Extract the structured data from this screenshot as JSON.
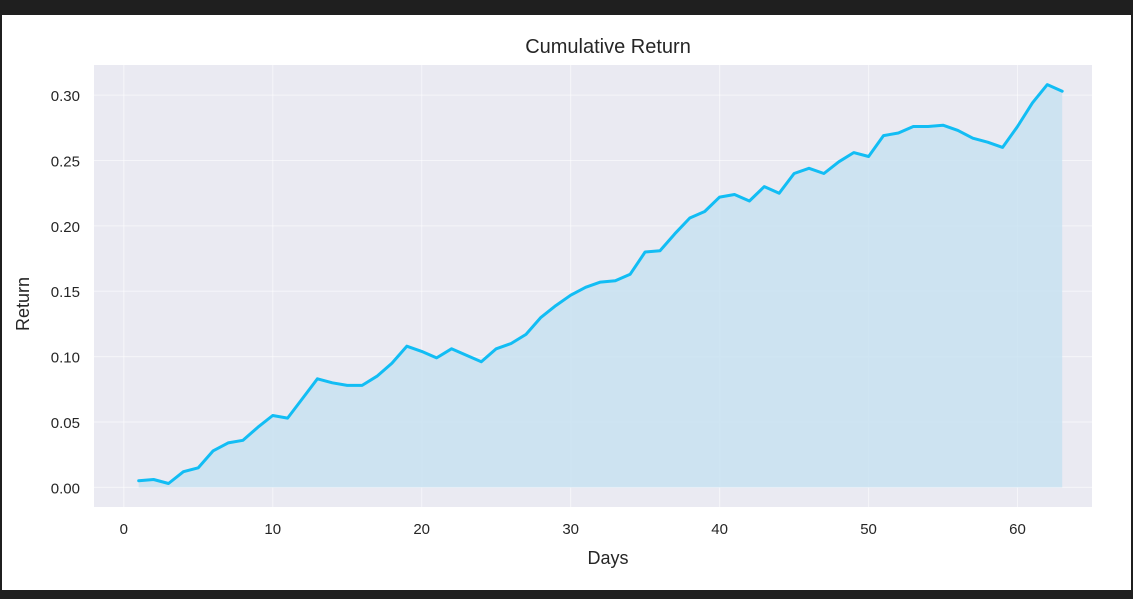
{
  "chart_data": {
    "type": "area",
    "title": "Cumulative Return",
    "xlabel": "Days",
    "ylabel": "Return",
    "xlim": [
      -2,
      65
    ],
    "ylim": [
      -0.015,
      0.323
    ],
    "xticks": [
      0,
      10,
      20,
      30,
      40,
      50,
      60
    ],
    "yticks": [
      0.0,
      0.05,
      0.1,
      0.15,
      0.2,
      0.25,
      0.3
    ],
    "grid": true,
    "line_color": "#12bdf4",
    "fill_color": "#c8e2f1",
    "background_color": "#eaeaf2",
    "x": [
      1,
      2,
      3,
      4,
      5,
      6,
      7,
      8,
      9,
      10,
      11,
      12,
      13,
      14,
      15,
      16,
      17,
      18,
      19,
      20,
      21,
      22,
      23,
      24,
      25,
      26,
      27,
      28,
      29,
      30,
      31,
      32,
      33,
      34,
      35,
      36,
      37,
      38,
      39,
      40,
      41,
      42,
      43,
      44,
      45,
      46,
      47,
      48,
      49,
      50,
      51,
      52,
      53,
      54,
      55,
      56,
      57,
      58,
      59,
      60,
      61,
      62,
      63
    ],
    "y": [
      0.005,
      0.006,
      0.003,
      0.012,
      0.015,
      0.028,
      0.034,
      0.036,
      0.046,
      0.055,
      0.053,
      0.068,
      0.083,
      0.08,
      0.078,
      0.078,
      0.085,
      0.095,
      0.108,
      0.104,
      0.099,
      0.106,
      0.101,
      0.096,
      0.106,
      0.11,
      0.117,
      0.13,
      0.139,
      0.147,
      0.153,
      0.157,
      0.158,
      0.163,
      0.18,
      0.181,
      0.194,
      0.206,
      0.211,
      0.222,
      0.224,
      0.219,
      0.23,
      0.225,
      0.24,
      0.244,
      0.24,
      0.249,
      0.256,
      0.253,
      0.269,
      0.271,
      0.276,
      0.276,
      0.277,
      0.273,
      0.267,
      0.264,
      0.26,
      0.276,
      0.294,
      0.308,
      0.303
    ]
  }
}
